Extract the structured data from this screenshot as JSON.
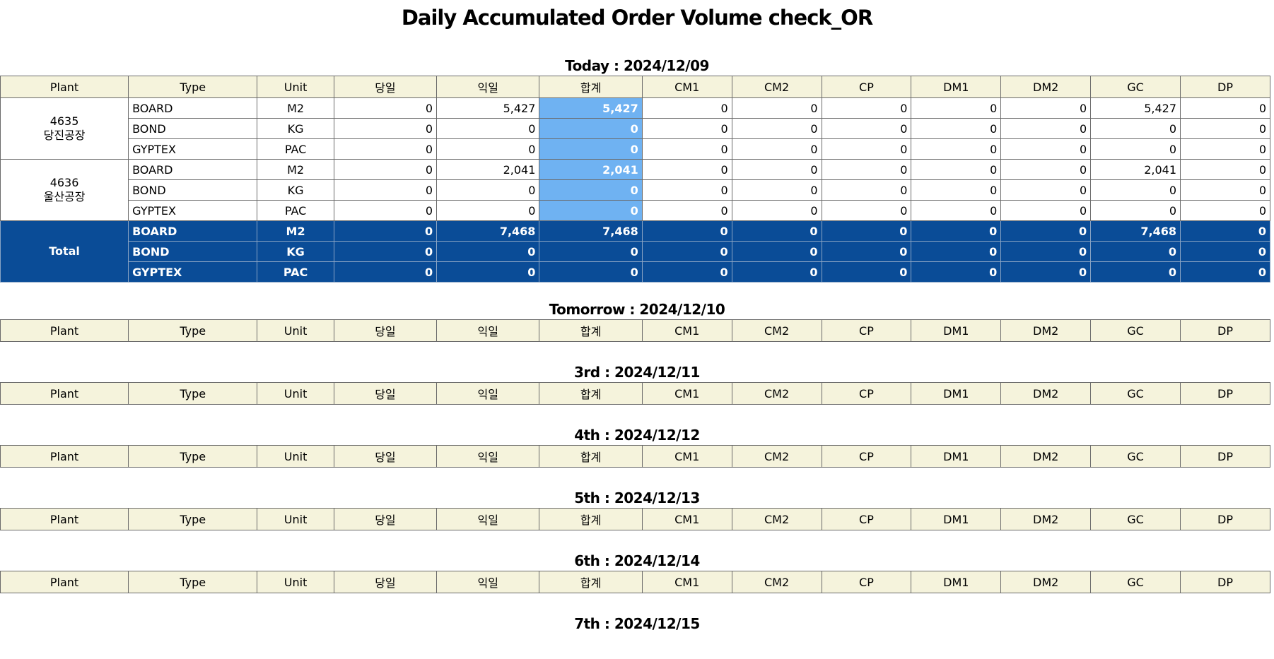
{
  "page": {
    "title": "Daily Accumulated Order Volume check_OR"
  },
  "columns": [
    "Plant",
    "Type",
    "Unit",
    "당일",
    "익일",
    "합계",
    "CM1",
    "CM2",
    "CP",
    "DM1",
    "DM2",
    "GC",
    "DP"
  ],
  "sections": [
    {
      "title": "Today : 2024/12/09",
      "plants": [
        {
          "code": "4635",
          "name": "당진공장",
          "rows": [
            {
              "type": "BOARD",
              "unit": "M2",
              "values": [
                "0",
                "5,427",
                "5,427",
                "0",
                "0",
                "0",
                "0",
                "0",
                "5,427",
                "0"
              ]
            },
            {
              "type": "BOND",
              "unit": "KG",
              "values": [
                "0",
                "0",
                "0",
                "0",
                "0",
                "0",
                "0",
                "0",
                "0",
                "0"
              ]
            },
            {
              "type": "GYPTEX",
              "unit": "PAC",
              "values": [
                "0",
                "0",
                "0",
                "0",
                "0",
                "0",
                "0",
                "0",
                "0",
                "0"
              ]
            }
          ]
        },
        {
          "code": "4636",
          "name": "울산공장",
          "rows": [
            {
              "type": "BOARD",
              "unit": "M2",
              "values": [
                "0",
                "2,041",
                "2,041",
                "0",
                "0",
                "0",
                "0",
                "0",
                "2,041",
                "0"
              ]
            },
            {
              "type": "BOND",
              "unit": "KG",
              "values": [
                "0",
                "0",
                "0",
                "0",
                "0",
                "0",
                "0",
                "0",
                "0",
                "0"
              ]
            },
            {
              "type": "GYPTEX",
              "unit": "PAC",
              "values": [
                "0",
                "0",
                "0",
                "0",
                "0",
                "0",
                "0",
                "0",
                "0",
                "0"
              ]
            }
          ]
        }
      ],
      "total": {
        "label": "Total",
        "rows": [
          {
            "type": "BOARD",
            "unit": "M2",
            "values": [
              "0",
              "7,468",
              "7,468",
              "0",
              "0",
              "0",
              "0",
              "0",
              "7,468",
              "0"
            ]
          },
          {
            "type": "BOND",
            "unit": "KG",
            "values": [
              "0",
              "0",
              "0",
              "0",
              "0",
              "0",
              "0",
              "0",
              "0",
              "0"
            ]
          },
          {
            "type": "GYPTEX",
            "unit": "PAC",
            "values": [
              "0",
              "0",
              "0",
              "0",
              "0",
              "0",
              "0",
              "0",
              "0",
              "0"
            ]
          }
        ]
      }
    },
    {
      "title": "Tomorrow : 2024/12/10"
    },
    {
      "title": "3rd : 2024/12/11"
    },
    {
      "title": "4th : 2024/12/12"
    },
    {
      "title": "5th : 2024/12/13"
    },
    {
      "title": "6th : 2024/12/14"
    },
    {
      "title": "7th : 2024/12/15"
    }
  ],
  "colors": {
    "header_bg": "#f5f3dc",
    "sum_bg": "#6fb2f2",
    "total_bg": "#0a4c97"
  }
}
